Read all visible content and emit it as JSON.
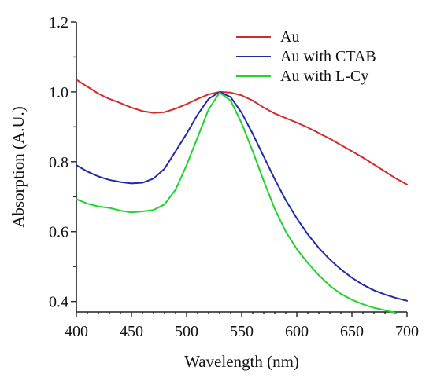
{
  "chart_data": {
    "type": "line",
    "title": "",
    "xlabel": "Wavelength (nm)",
    "ylabel": "Absorption (A.U.)",
    "xlim": [
      400,
      700
    ],
    "ylim": [
      0.37,
      1.2
    ],
    "xticks": [
      400,
      450,
      500,
      550,
      600,
      650,
      700
    ],
    "yticks": [
      0.4,
      0.6,
      0.8,
      1.0,
      1.2
    ],
    "xtick_labels": [
      "400",
      "450",
      "500",
      "550",
      "600",
      "650",
      "700"
    ],
    "ytick_labels": [
      "0.4",
      "0.6",
      "0.8",
      "1.0",
      "1.2"
    ],
    "grid": false,
    "legend_position": "top-right",
    "series": [
      {
        "name": "Au",
        "color": "#d42a2a",
        "x": [
          400,
          410,
          420,
          430,
          440,
          450,
          460,
          470,
          480,
          490,
          500,
          510,
          520,
          530,
          540,
          550,
          560,
          570,
          580,
          590,
          600,
          610,
          620,
          630,
          640,
          650,
          660,
          670,
          680,
          690,
          700
        ],
        "y": [
          1.035,
          1.015,
          0.995,
          0.98,
          0.968,
          0.955,
          0.945,
          0.94,
          0.942,
          0.952,
          0.965,
          0.98,
          0.993,
          1.0,
          0.998,
          0.99,
          0.975,
          0.955,
          0.938,
          0.925,
          0.912,
          0.898,
          0.882,
          0.866,
          0.848,
          0.83,
          0.812,
          0.792,
          0.772,
          0.752,
          0.735
        ]
      },
      {
        "name": "Au  with CTAB",
        "color": "#1f2aa8",
        "x": [
          400,
          410,
          420,
          430,
          440,
          450,
          460,
          470,
          480,
          490,
          500,
          510,
          520,
          530,
          540,
          550,
          560,
          570,
          580,
          590,
          600,
          610,
          620,
          630,
          640,
          650,
          660,
          670,
          680,
          690,
          700
        ],
        "y": [
          0.79,
          0.772,
          0.758,
          0.748,
          0.742,
          0.738,
          0.74,
          0.752,
          0.78,
          0.83,
          0.88,
          0.935,
          0.98,
          1.0,
          0.985,
          0.94,
          0.88,
          0.815,
          0.75,
          0.69,
          0.638,
          0.592,
          0.553,
          0.52,
          0.492,
          0.468,
          0.448,
          0.432,
          0.42,
          0.41,
          0.402
        ]
      },
      {
        "name": "Au with L-Cy",
        "color": "#1fd42a",
        "x": [
          400,
          410,
          420,
          430,
          440,
          450,
          460,
          470,
          480,
          490,
          500,
          510,
          520,
          530,
          540,
          550,
          560,
          570,
          580,
          590,
          600,
          610,
          620,
          630,
          640,
          650,
          660,
          670,
          680,
          690
        ],
        "y": [
          0.693,
          0.68,
          0.672,
          0.668,
          0.66,
          0.655,
          0.658,
          0.662,
          0.678,
          0.72,
          0.79,
          0.87,
          0.95,
          0.998,
          0.975,
          0.91,
          0.83,
          0.745,
          0.665,
          0.6,
          0.55,
          0.51,
          0.475,
          0.445,
          0.422,
          0.405,
          0.392,
          0.382,
          0.375,
          0.367
        ]
      }
    ]
  }
}
